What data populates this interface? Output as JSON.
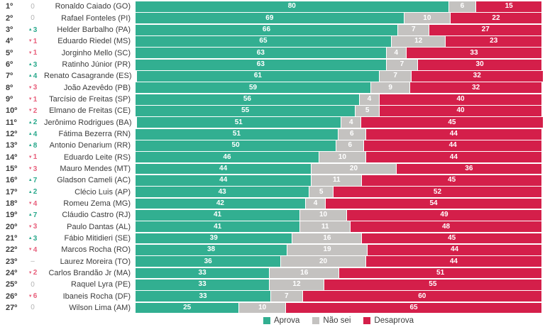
{
  "chart_data": {
    "type": "bar",
    "orientation": "horizontal-stacked",
    "title": "",
    "legend": [
      "Aprova",
      "Não sei",
      "Desaprova"
    ],
    "legend_position": "bottom-center",
    "xlim": [
      0,
      100
    ],
    "grid": false,
    "colors": {
      "aprova": "#32af91",
      "nao_sei": "#c4c2c0",
      "desaprova": "#d41f4a",
      "change_up": "#2aa98c",
      "change_down": "#e8607c",
      "change_neutral": "#b4b4b4"
    },
    "rows": [
      {
        "rank": "1º",
        "change": "0",
        "dir": "zero",
        "name": "Ronaldo Caiado (GO)",
        "aprova": 80,
        "nao_sei": 6,
        "desaprova": 15
      },
      {
        "rank": "2º",
        "change": "0",
        "dir": "zero",
        "name": "Rafael Fonteles (PI)",
        "aprova": 69,
        "nao_sei": 10,
        "desaprova": 22
      },
      {
        "rank": "3º",
        "change": "3",
        "dir": "up",
        "name": "Helder Barbalho (PA)",
        "aprova": 66,
        "nao_sei": 7,
        "desaprova": 27
      },
      {
        "rank": "4º",
        "change": "1",
        "dir": "down",
        "name": "Eduardo Riedel (MS)",
        "aprova": 65,
        "nao_sei": 12,
        "desaprova": 23
      },
      {
        "rank": "5º",
        "change": "1",
        "dir": "down",
        "name": "Jorginho Mello (SC)",
        "aprova": 63,
        "nao_sei": 4,
        "desaprova": 33
      },
      {
        "rank": "6º",
        "change": "3",
        "dir": "up",
        "name": "Ratinho Júnior (PR)",
        "aprova": 63,
        "nao_sei": 7,
        "desaprova": 30
      },
      {
        "rank": "7º",
        "change": "4",
        "dir": "up",
        "name": "Renato Casagrande (ES)",
        "aprova": 61,
        "nao_sei": 7,
        "desaprova": 32
      },
      {
        "rank": "8º",
        "change": "3",
        "dir": "down",
        "name": "João Azevêdo (PB)",
        "aprova": 59,
        "nao_sei": 9,
        "desaprova": 32
      },
      {
        "rank": "9º",
        "change": "1",
        "dir": "down",
        "name": "Tarcísio de Freitas (SP)",
        "aprova": 56,
        "nao_sei": 4,
        "desaprova": 40
      },
      {
        "rank": "10º",
        "change": "2",
        "dir": "down",
        "name": "Elmano de Freitas (CE)",
        "aprova": 55,
        "nao_sei": 5,
        "desaprova": 40
      },
      {
        "rank": "11º",
        "change": "2",
        "dir": "up",
        "name": "Jerônimo Rodrigues (BA)",
        "aprova": 51,
        "nao_sei": 4,
        "desaprova": 45
      },
      {
        "rank": "12º",
        "change": "4",
        "dir": "up",
        "name": "Fátima Bezerra (RN)",
        "aprova": 51,
        "nao_sei": 6,
        "desaprova": 44
      },
      {
        "rank": "13º",
        "change": "8",
        "dir": "up",
        "name": "Antonio Denarium (RR)",
        "aprova": 50,
        "nao_sei": 6,
        "desaprova": 44
      },
      {
        "rank": "14º",
        "change": "1",
        "dir": "down",
        "name": "Eduardo Leite (RS)",
        "aprova": 46,
        "nao_sei": 10,
        "desaprova": 44
      },
      {
        "rank": "15º",
        "change": "3",
        "dir": "down",
        "name": "Mauro Mendes (MT)",
        "aprova": 44,
        "nao_sei": 20,
        "desaprova": 36
      },
      {
        "rank": "16º",
        "change": "7",
        "dir": "up",
        "name": "Gladson Cameli (AC)",
        "aprova": 44,
        "nao_sei": 11,
        "desaprova": 45
      },
      {
        "rank": "17º",
        "change": "2",
        "dir": "up",
        "name": "Clécio Luis (AP)",
        "aprova": 43,
        "nao_sei": 5,
        "desaprova": 52
      },
      {
        "rank": "18º",
        "change": "4",
        "dir": "down",
        "name": "Romeu Zema (MG)",
        "aprova": 42,
        "nao_sei": 4,
        "desaprova": 54
      },
      {
        "rank": "19º",
        "change": "7",
        "dir": "up",
        "name": "Cláudio Castro (RJ)",
        "aprova": 41,
        "nao_sei": 10,
        "desaprova": 49
      },
      {
        "rank": "20º",
        "change": "3",
        "dir": "down",
        "name": "Paulo Dantas (AL)",
        "aprova": 41,
        "nao_sei": 11,
        "desaprova": 48
      },
      {
        "rank": "21º",
        "change": "3",
        "dir": "up",
        "name": "Fábio Mitidieri (SE)",
        "aprova": 39,
        "nao_sei": 16,
        "desaprova": 45
      },
      {
        "rank": "22º",
        "change": "4",
        "dir": "down",
        "name": "Marcos Rocha (RO)",
        "aprova": 38,
        "nao_sei": 19,
        "desaprova": 44
      },
      {
        "rank": "23º",
        "change": "–",
        "dir": "dash",
        "name": "Laurez Moreira (TO)",
        "aprova": 36,
        "nao_sei": 20,
        "desaprova": 44
      },
      {
        "rank": "24º",
        "change": "2",
        "dir": "down",
        "name": "Carlos Brandão Jr (MA)",
        "aprova": 33,
        "nao_sei": 16,
        "desaprova": 51
      },
      {
        "rank": "25º",
        "change": "0",
        "dir": "zero",
        "name": "Raquel Lyra (PE)",
        "aprova": 33,
        "nao_sei": 12,
        "desaprova": 55
      },
      {
        "rank": "26º",
        "change": "6",
        "dir": "down",
        "name": "Ibaneis Rocha (DF)",
        "aprova": 33,
        "nao_sei": 7,
        "desaprova": 60
      },
      {
        "rank": "27º",
        "change": "0",
        "dir": "zero",
        "name": "Wilson Lima (AM)",
        "aprova": 25,
        "nao_sei": 10,
        "desaprova": 65
      }
    ]
  }
}
